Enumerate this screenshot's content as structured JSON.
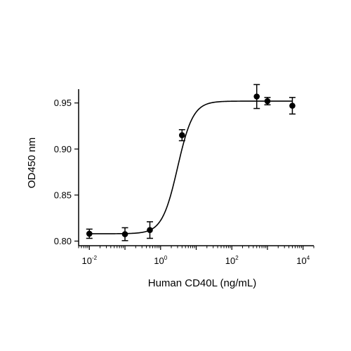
{
  "chart_data": {
    "type": "scatter",
    "xlabel": "Human CD40L (ng/mL)",
    "ylabel": "OD450 nm",
    "x_scale": "log10",
    "xlim": [
      0.005,
      20000
    ],
    "ylim": [
      0.795,
      0.965
    ],
    "x_ticks": [
      {
        "value": 0.01,
        "base": "10",
        "exp": "-2"
      },
      {
        "value": 1,
        "base": "10",
        "exp": "0"
      },
      {
        "value": 100,
        "base": "10",
        "exp": "2"
      },
      {
        "value": 10000,
        "base": "10",
        "exp": "4"
      }
    ],
    "y_ticks": [
      {
        "value": 0.8,
        "label": "0.80"
      },
      {
        "value": 0.85,
        "label": "0.85"
      },
      {
        "value": 0.9,
        "label": "0.90"
      },
      {
        "value": 0.95,
        "label": "0.95"
      }
    ],
    "grid": false,
    "legend": "none",
    "series": [
      {
        "points": [
          {
            "x": 0.01,
            "y": 0.808,
            "err": 0.005
          },
          {
            "x": 0.1,
            "y": 0.8075,
            "err": 0.007
          },
          {
            "x": 0.5,
            "y": 0.812,
            "err": 0.009
          },
          {
            "x": 4.0,
            "y": 0.915,
            "err": 0.006
          },
          {
            "x": 500,
            "y": 0.957,
            "err": 0.013
          },
          {
            "x": 1000,
            "y": 0.952,
            "err": 0.004
          },
          {
            "x": 5000,
            "y": 0.947,
            "err": 0.009
          }
        ],
        "fit": {
          "model": "4PL",
          "bottom": 0.808,
          "top": 0.952,
          "ec50": 3.0,
          "hill": 2.0
        }
      }
    ],
    "colors": {
      "points": "#000000",
      "line": "#000000"
    }
  }
}
